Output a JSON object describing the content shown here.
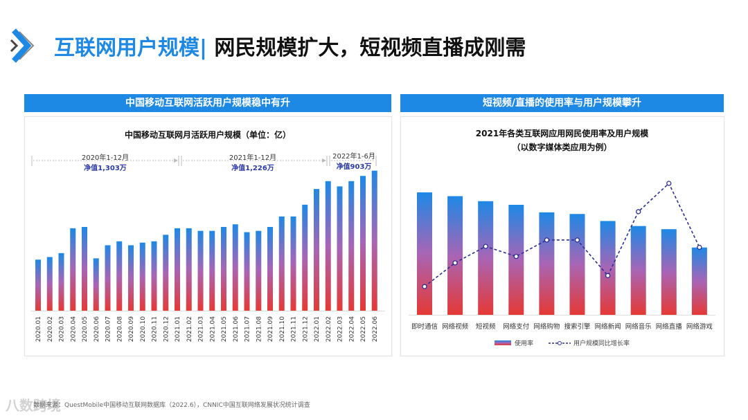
{
  "header": {
    "logo_icon": "double-chevron-right-icon",
    "title_highlight": "互联网用户规模|",
    "title_rest": " 网民规模扩大，短视频直播成刚需",
    "accent_color": "#1e88e5"
  },
  "left_section": {
    "banner": "中国移动互联网活跃用户规模稳中有升",
    "annotations": [
      {
        "period": "2020年1-12月",
        "net": "净值1,303万"
      },
      {
        "period": "2021年1-12月",
        "net": "净值1,226万"
      },
      {
        "period": "2022年1-6月",
        "net": "净值903万"
      }
    ]
  },
  "right_section": {
    "banner": "短视频/直播的使用率与用户规模攀升",
    "legend": {
      "bar": "使用率",
      "line": "用户规模同比增长率"
    }
  },
  "chart_data": [
    {
      "type": "bar",
      "title": "中国移动互联网月活跃用户规模（单位：亿）",
      "categories": [
        "2020.01",
        "2020.02",
        "2020.03",
        "2020.04",
        "2020.05",
        "2020.06",
        "2020.07",
        "2020.08",
        "2020.09",
        "2020.10",
        "2020.11",
        "2020.12",
        "2021.01",
        "2021.02",
        "2021.03",
        "2021.04",
        "2021.05",
        "2021.06",
        "2021.07",
        "2021.08",
        "2021.09",
        "2021.10",
        "2021.11",
        "2021.12",
        "2022.01",
        "2022.02",
        "2022.03",
        "2022.04",
        "2022.05",
        "2022.06"
      ],
      "values": [
        11.39,
        11.41,
        11.44,
        11.63,
        11.64,
        11.4,
        11.5,
        11.53,
        11.5,
        11.52,
        11.53,
        11.58,
        11.63,
        11.63,
        11.61,
        11.61,
        11.64,
        11.66,
        11.6,
        11.61,
        11.64,
        11.72,
        11.72,
        11.81,
        11.93,
        11.99,
        11.95,
        11.99,
        12.03,
        12.07
      ],
      "ylim": [
        11.0,
        12.1
      ],
      "grid": false,
      "bar_gradient": [
        "#1e88e5",
        "#e53935"
      ]
    },
    {
      "type": "bar+line",
      "title": "2021年各类互联网应用网民使用率及用户规模",
      "subtitle": "（以数字媒体类应用为例）",
      "categories": [
        "即时通信",
        "网络视频",
        "短视频",
        "网络支付",
        "网络购物",
        "搜索引擎",
        "网络新闻",
        "网络音乐",
        "网络直播",
        "网络游戏"
      ],
      "series": [
        {
          "name": "使用率",
          "type": "bar",
          "values": [
            97.5,
            94.5,
            90.5,
            87.6,
            81.6,
            80.3,
            74.7,
            70.7,
            68.2,
            53.6
          ]
        },
        {
          "name": "用户规模同比增长率",
          "type": "line",
          "values": [
            2.6,
            5.2,
            7.0,
            5.9,
            7.7,
            7.7,
            3.8,
            10.8,
            13.9,
            6.9
          ],
          "color": "#2b2f8f"
        }
      ],
      "legend": "bottom",
      "grid": false
    }
  ],
  "footer": {
    "source": "数据来源：QuestMobile中国移动互联网数据库（2022.6），CNNIC中国互联网络发展状况统计调查",
    "watermark": "八数跨境"
  }
}
